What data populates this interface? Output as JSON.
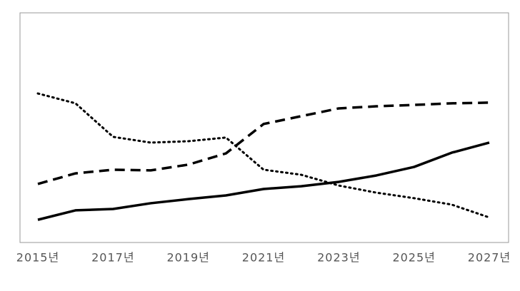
{
  "chart_data": {
    "type": "line",
    "categories": [
      "2015년",
      null,
      "2017년",
      null,
      "2019년",
      null,
      "2021년",
      null,
      "2023년",
      null,
      "2025년",
      null,
      "2027년"
    ],
    "series": [
      {
        "color": "#000000",
        "dash": "solid",
        "values": [
          9.9,
          14.0,
          14.6,
          17.1,
          18.9,
          20.5,
          23.3,
          24.5,
          26.4,
          29.2,
          32.9,
          39.1,
          43.5
        ]
      },
      {
        "color": "#000000",
        "dash": "dashed",
        "values": [
          25.5,
          30.1,
          31.7,
          31.4,
          33.9,
          38.8,
          51.6,
          55.0,
          58.4,
          59.3,
          59.9,
          60.6,
          60.9
        ]
      },
      {
        "color": "#000000",
        "dash": "dotted",
        "values": [
          64.9,
          60.6,
          46.0,
          43.5,
          44.1,
          45.7,
          31.7,
          29.5,
          24.8,
          21.7,
          19.3,
          16.5,
          10.9
        ]
      }
    ],
    "ylim": [
      0,
      100
    ]
  }
}
